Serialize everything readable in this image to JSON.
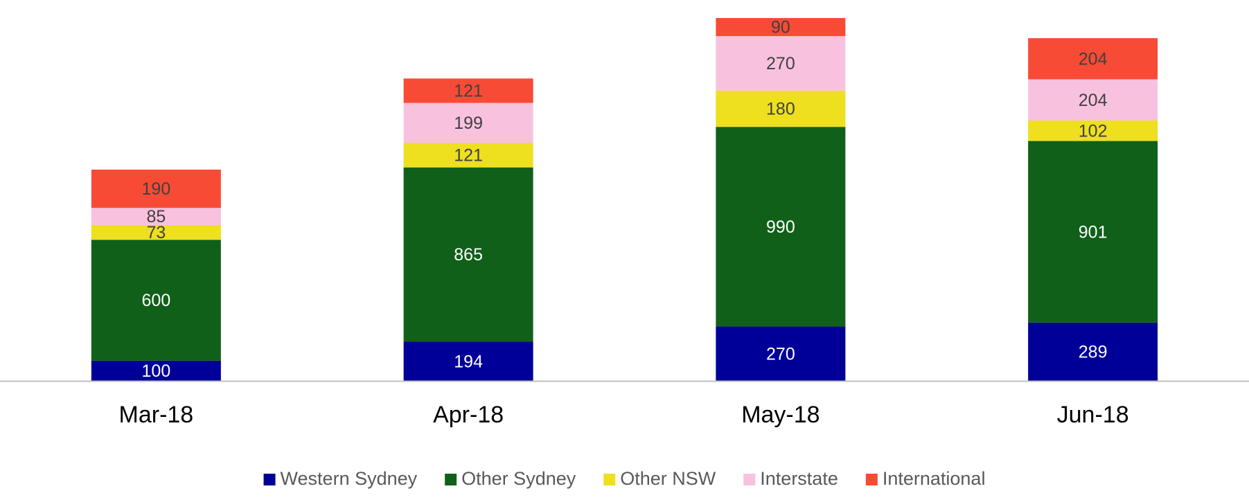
{
  "chart_data": {
    "type": "stacked-bar",
    "categories": [
      "Mar-18",
      "Apr-18",
      "May-18",
      "Jun-18"
    ],
    "series": [
      {
        "name": "Western Sydney",
        "color": "#000099",
        "values": [
          100,
          194,
          270,
          289
        ]
      },
      {
        "name": "Other Sydney",
        "color": "#116019",
        "values": [
          600,
          865,
          990,
          901
        ]
      },
      {
        "name": "Other NSW",
        "color": "#eedf1f",
        "values": [
          73,
          121,
          180,
          102
        ]
      },
      {
        "name": "Interstate",
        "color": "#f8c2de",
        "values": [
          85,
          199,
          270,
          204
        ]
      },
      {
        "name": "International",
        "color": "#f84b35",
        "values": [
          190,
          121,
          90,
          204
        ]
      }
    ],
    "legend": "bottom"
  }
}
